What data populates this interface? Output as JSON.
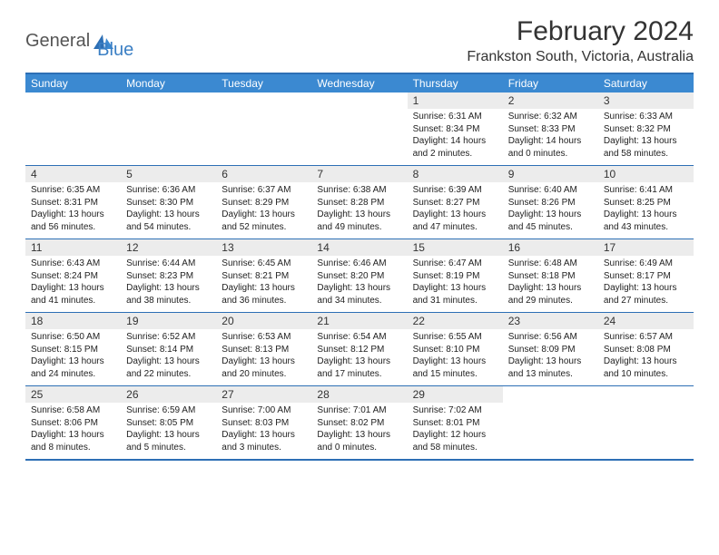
{
  "logo": {
    "part1": "General",
    "part2": "Blue"
  },
  "title": "February 2024",
  "location": "Frankston South, Victoria, Australia",
  "colors": {
    "header_bg": "#3b89d1",
    "border": "#2d6fb5",
    "daynum_bg": "#ececec",
    "text": "#222222",
    "logo_gray": "#555555",
    "logo_blue": "#3b7fc4"
  },
  "dow": [
    "Sunday",
    "Monday",
    "Tuesday",
    "Wednesday",
    "Thursday",
    "Friday",
    "Saturday"
  ],
  "weeks": [
    [
      {
        "blank": true
      },
      {
        "blank": true
      },
      {
        "blank": true
      },
      {
        "blank": true
      },
      {
        "n": "1",
        "sunrise": "Sunrise: 6:31 AM",
        "sunset": "Sunset: 8:34 PM",
        "d1": "Daylight: 14 hours",
        "d2": "and 2 minutes."
      },
      {
        "n": "2",
        "sunrise": "Sunrise: 6:32 AM",
        "sunset": "Sunset: 8:33 PM",
        "d1": "Daylight: 14 hours",
        "d2": "and 0 minutes."
      },
      {
        "n": "3",
        "sunrise": "Sunrise: 6:33 AM",
        "sunset": "Sunset: 8:32 PM",
        "d1": "Daylight: 13 hours",
        "d2": "and 58 minutes."
      }
    ],
    [
      {
        "n": "4",
        "sunrise": "Sunrise: 6:35 AM",
        "sunset": "Sunset: 8:31 PM",
        "d1": "Daylight: 13 hours",
        "d2": "and 56 minutes."
      },
      {
        "n": "5",
        "sunrise": "Sunrise: 6:36 AM",
        "sunset": "Sunset: 8:30 PM",
        "d1": "Daylight: 13 hours",
        "d2": "and 54 minutes."
      },
      {
        "n": "6",
        "sunrise": "Sunrise: 6:37 AM",
        "sunset": "Sunset: 8:29 PM",
        "d1": "Daylight: 13 hours",
        "d2": "and 52 minutes."
      },
      {
        "n": "7",
        "sunrise": "Sunrise: 6:38 AM",
        "sunset": "Sunset: 8:28 PM",
        "d1": "Daylight: 13 hours",
        "d2": "and 49 minutes."
      },
      {
        "n": "8",
        "sunrise": "Sunrise: 6:39 AM",
        "sunset": "Sunset: 8:27 PM",
        "d1": "Daylight: 13 hours",
        "d2": "and 47 minutes."
      },
      {
        "n": "9",
        "sunrise": "Sunrise: 6:40 AM",
        "sunset": "Sunset: 8:26 PM",
        "d1": "Daylight: 13 hours",
        "d2": "and 45 minutes."
      },
      {
        "n": "10",
        "sunrise": "Sunrise: 6:41 AM",
        "sunset": "Sunset: 8:25 PM",
        "d1": "Daylight: 13 hours",
        "d2": "and 43 minutes."
      }
    ],
    [
      {
        "n": "11",
        "sunrise": "Sunrise: 6:43 AM",
        "sunset": "Sunset: 8:24 PM",
        "d1": "Daylight: 13 hours",
        "d2": "and 41 minutes."
      },
      {
        "n": "12",
        "sunrise": "Sunrise: 6:44 AM",
        "sunset": "Sunset: 8:23 PM",
        "d1": "Daylight: 13 hours",
        "d2": "and 38 minutes."
      },
      {
        "n": "13",
        "sunrise": "Sunrise: 6:45 AM",
        "sunset": "Sunset: 8:21 PM",
        "d1": "Daylight: 13 hours",
        "d2": "and 36 minutes."
      },
      {
        "n": "14",
        "sunrise": "Sunrise: 6:46 AM",
        "sunset": "Sunset: 8:20 PM",
        "d1": "Daylight: 13 hours",
        "d2": "and 34 minutes."
      },
      {
        "n": "15",
        "sunrise": "Sunrise: 6:47 AM",
        "sunset": "Sunset: 8:19 PM",
        "d1": "Daylight: 13 hours",
        "d2": "and 31 minutes."
      },
      {
        "n": "16",
        "sunrise": "Sunrise: 6:48 AM",
        "sunset": "Sunset: 8:18 PM",
        "d1": "Daylight: 13 hours",
        "d2": "and 29 minutes."
      },
      {
        "n": "17",
        "sunrise": "Sunrise: 6:49 AM",
        "sunset": "Sunset: 8:17 PM",
        "d1": "Daylight: 13 hours",
        "d2": "and 27 minutes."
      }
    ],
    [
      {
        "n": "18",
        "sunrise": "Sunrise: 6:50 AM",
        "sunset": "Sunset: 8:15 PM",
        "d1": "Daylight: 13 hours",
        "d2": "and 24 minutes."
      },
      {
        "n": "19",
        "sunrise": "Sunrise: 6:52 AM",
        "sunset": "Sunset: 8:14 PM",
        "d1": "Daylight: 13 hours",
        "d2": "and 22 minutes."
      },
      {
        "n": "20",
        "sunrise": "Sunrise: 6:53 AM",
        "sunset": "Sunset: 8:13 PM",
        "d1": "Daylight: 13 hours",
        "d2": "and 20 minutes."
      },
      {
        "n": "21",
        "sunrise": "Sunrise: 6:54 AM",
        "sunset": "Sunset: 8:12 PM",
        "d1": "Daylight: 13 hours",
        "d2": "and 17 minutes."
      },
      {
        "n": "22",
        "sunrise": "Sunrise: 6:55 AM",
        "sunset": "Sunset: 8:10 PM",
        "d1": "Daylight: 13 hours",
        "d2": "and 15 minutes."
      },
      {
        "n": "23",
        "sunrise": "Sunrise: 6:56 AM",
        "sunset": "Sunset: 8:09 PM",
        "d1": "Daylight: 13 hours",
        "d2": "and 13 minutes."
      },
      {
        "n": "24",
        "sunrise": "Sunrise: 6:57 AM",
        "sunset": "Sunset: 8:08 PM",
        "d1": "Daylight: 13 hours",
        "d2": "and 10 minutes."
      }
    ],
    [
      {
        "n": "25",
        "sunrise": "Sunrise: 6:58 AM",
        "sunset": "Sunset: 8:06 PM",
        "d1": "Daylight: 13 hours",
        "d2": "and 8 minutes."
      },
      {
        "n": "26",
        "sunrise": "Sunrise: 6:59 AM",
        "sunset": "Sunset: 8:05 PM",
        "d1": "Daylight: 13 hours",
        "d2": "and 5 minutes."
      },
      {
        "n": "27",
        "sunrise": "Sunrise: 7:00 AM",
        "sunset": "Sunset: 8:03 PM",
        "d1": "Daylight: 13 hours",
        "d2": "and 3 minutes."
      },
      {
        "n": "28",
        "sunrise": "Sunrise: 7:01 AM",
        "sunset": "Sunset: 8:02 PM",
        "d1": "Daylight: 13 hours",
        "d2": "and 0 minutes."
      },
      {
        "n": "29",
        "sunrise": "Sunrise: 7:02 AM",
        "sunset": "Sunset: 8:01 PM",
        "d1": "Daylight: 12 hours",
        "d2": "and 58 minutes."
      },
      {
        "blank": true
      },
      {
        "blank": true
      }
    ]
  ]
}
